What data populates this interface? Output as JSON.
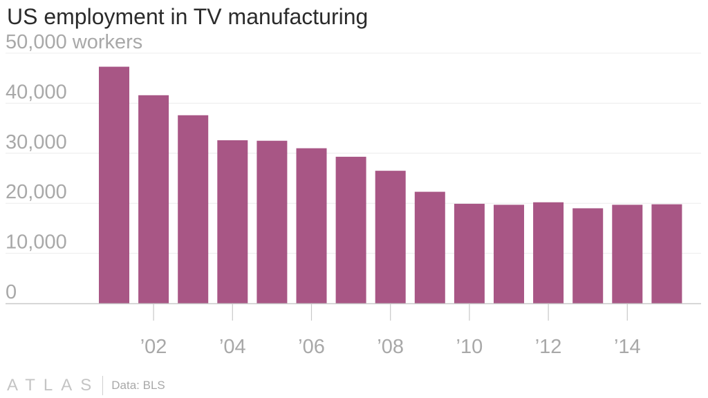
{
  "header": {
    "title": "US employment in TV manufacturing"
  },
  "footer": {
    "logo": "ATLAS",
    "source": "Data: BLS"
  },
  "colors": {
    "bar": "#a85685",
    "grid": "#ececec",
    "axis": "#c8c8c8",
    "tick_text": "#a8a8a8"
  },
  "chart_data": {
    "type": "bar",
    "title": "US employment in TV manufacturing",
    "xlabel": "",
    "ylabel": "",
    "x": [
      2001,
      2002,
      2003,
      2004,
      2005,
      2006,
      2007,
      2008,
      2009,
      2010,
      2011,
      2012,
      2013,
      2014,
      2015
    ],
    "values": [
      47300,
      41600,
      37600,
      32600,
      32500,
      31000,
      29300,
      26500,
      22300,
      19900,
      19700,
      20200,
      19000,
      19700,
      19800
    ],
    "ylim": [
      0,
      50000
    ],
    "y_ticks": [
      0,
      10000,
      20000,
      30000,
      40000,
      50000
    ],
    "y_tick_labels": [
      "0",
      "10,000",
      "20,000",
      "30,000",
      "40,000",
      "50,000 workers"
    ],
    "x_tick_values": [
      2002,
      2004,
      2006,
      2008,
      2010,
      2012,
      2014
    ],
    "x_tick_labels": [
      "’02",
      "’04",
      "’06",
      "’08",
      "’10",
      "’12",
      "’14"
    ],
    "grid": true,
    "legend": "none"
  }
}
